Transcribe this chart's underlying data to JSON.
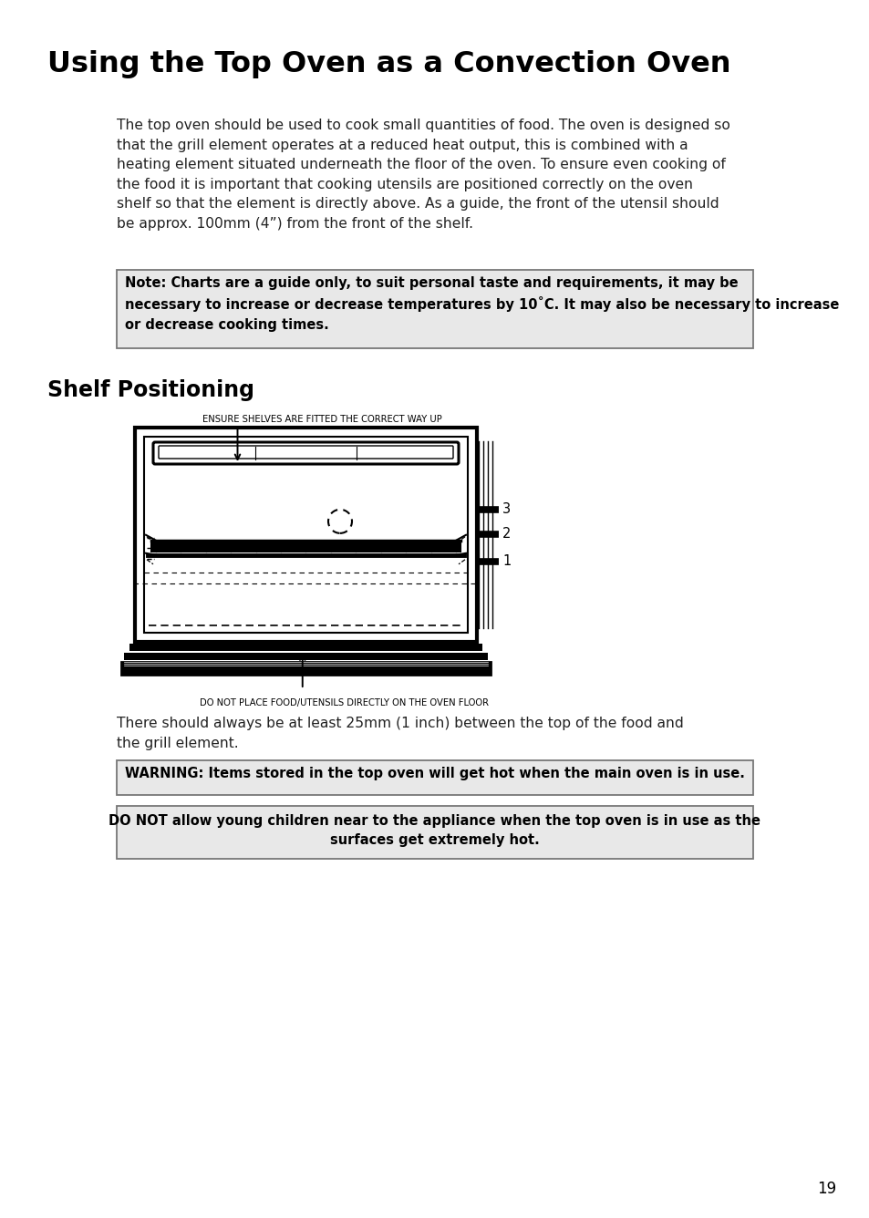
{
  "title": "Using the Top Oven as a Convection Oven",
  "body_text": "The top oven should be used to cook small quantities of food. The oven is designed so\nthat the grill element operates at a reduced heat output, this is combined with a\nheating element situated underneath the floor of the oven. To ensure even cooking of\nthe food it is important that cooking utensils are positioned correctly on the oven\nshelf so that the element is directly above. As a guide, the front of the utensil should\nbe approx. 100mm (4”) from the front of the shelf.",
  "note_text": "Note: Charts are a guide only, to suit personal taste and requirements, it may be\nnecessary to increase or decrease temperatures by 10˚C. It may also be necessary to increase\nor decrease cooking times.",
  "section_title": "Shelf Positioning",
  "label_top": "ENSURE SHELVES ARE FITTED THE CORRECT WAY UP",
  "label_bottom": "DO NOT PLACE FOOD/UTENSILS DIRECTLY ON THE OVEN FLOOR",
  "below_diagram_text": "There should always be at least 25mm (1 inch) between the top of the food and\nthe grill element.",
  "warning1": "WARNING: Items stored in the top oven will get hot when the main oven is in use.",
  "warning2": "DO NOT allow young children near to the appliance when the top oven is in use as the\nsurfaces get extremely hot.",
  "page_number": "19",
  "bg_color": "#ffffff",
  "note_bg": "#e8e8e8",
  "warning_bg": "#e8e8e8"
}
